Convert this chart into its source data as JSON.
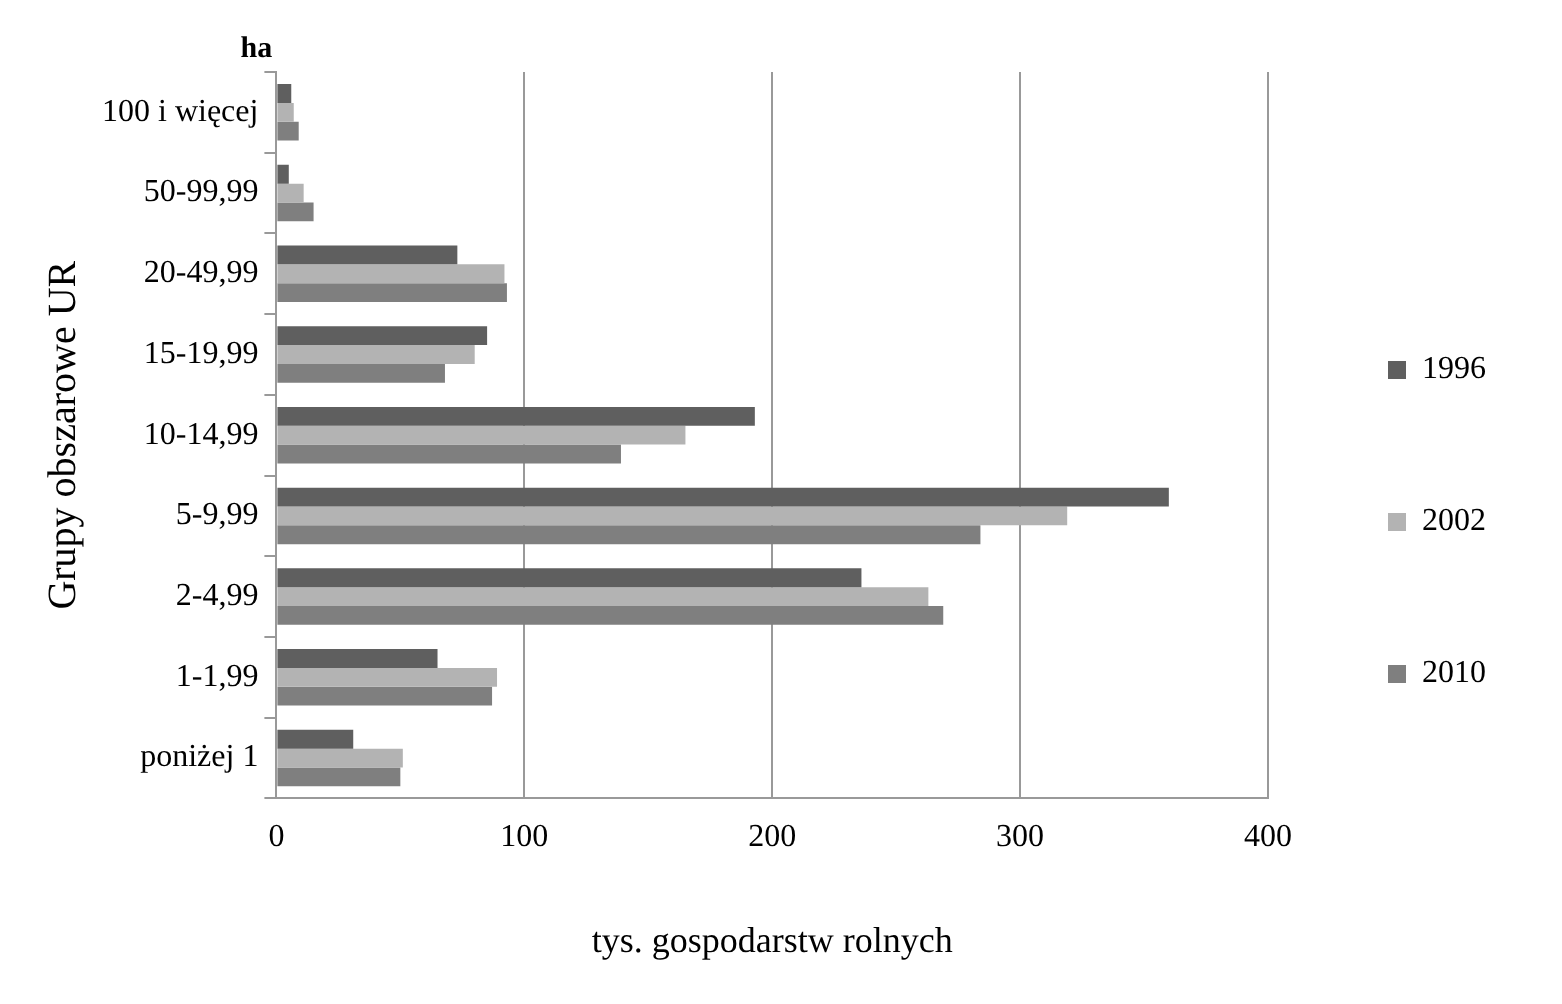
{
  "chart_data": {
    "type": "bar",
    "orientation": "horizontal",
    "xlabel": "tys. gospodarstw rolnych",
    "ylabel": "Grupy obszarowe UR",
    "annotations": [
      "ha"
    ],
    "categories": [
      "100 i więcej",
      "50-99,99",
      "20-49,99",
      "15-19,99",
      "10-14,99",
      "5-9,99",
      "2-4,99",
      "1-1,99",
      "poniżej 1"
    ],
    "series": [
      {
        "name": "1996",
        "color": "#5f5f5f",
        "values": [
          6,
          5,
          73,
          85,
          193,
          360,
          236,
          65,
          31
        ]
      },
      {
        "name": "2002",
        "color": "#b3b3b3",
        "values": [
          7,
          11,
          92,
          80,
          165,
          319,
          263,
          89,
          51
        ]
      },
      {
        "name": "2010",
        "color": "#7f7f7f",
        "values": [
          9,
          15,
          93,
          68,
          139,
          284,
          269,
          87,
          50
        ]
      }
    ],
    "xlim": [
      0,
      400
    ],
    "xticks": [
      0,
      100,
      200,
      300,
      400
    ],
    "grid": "x",
    "legend": "right"
  }
}
